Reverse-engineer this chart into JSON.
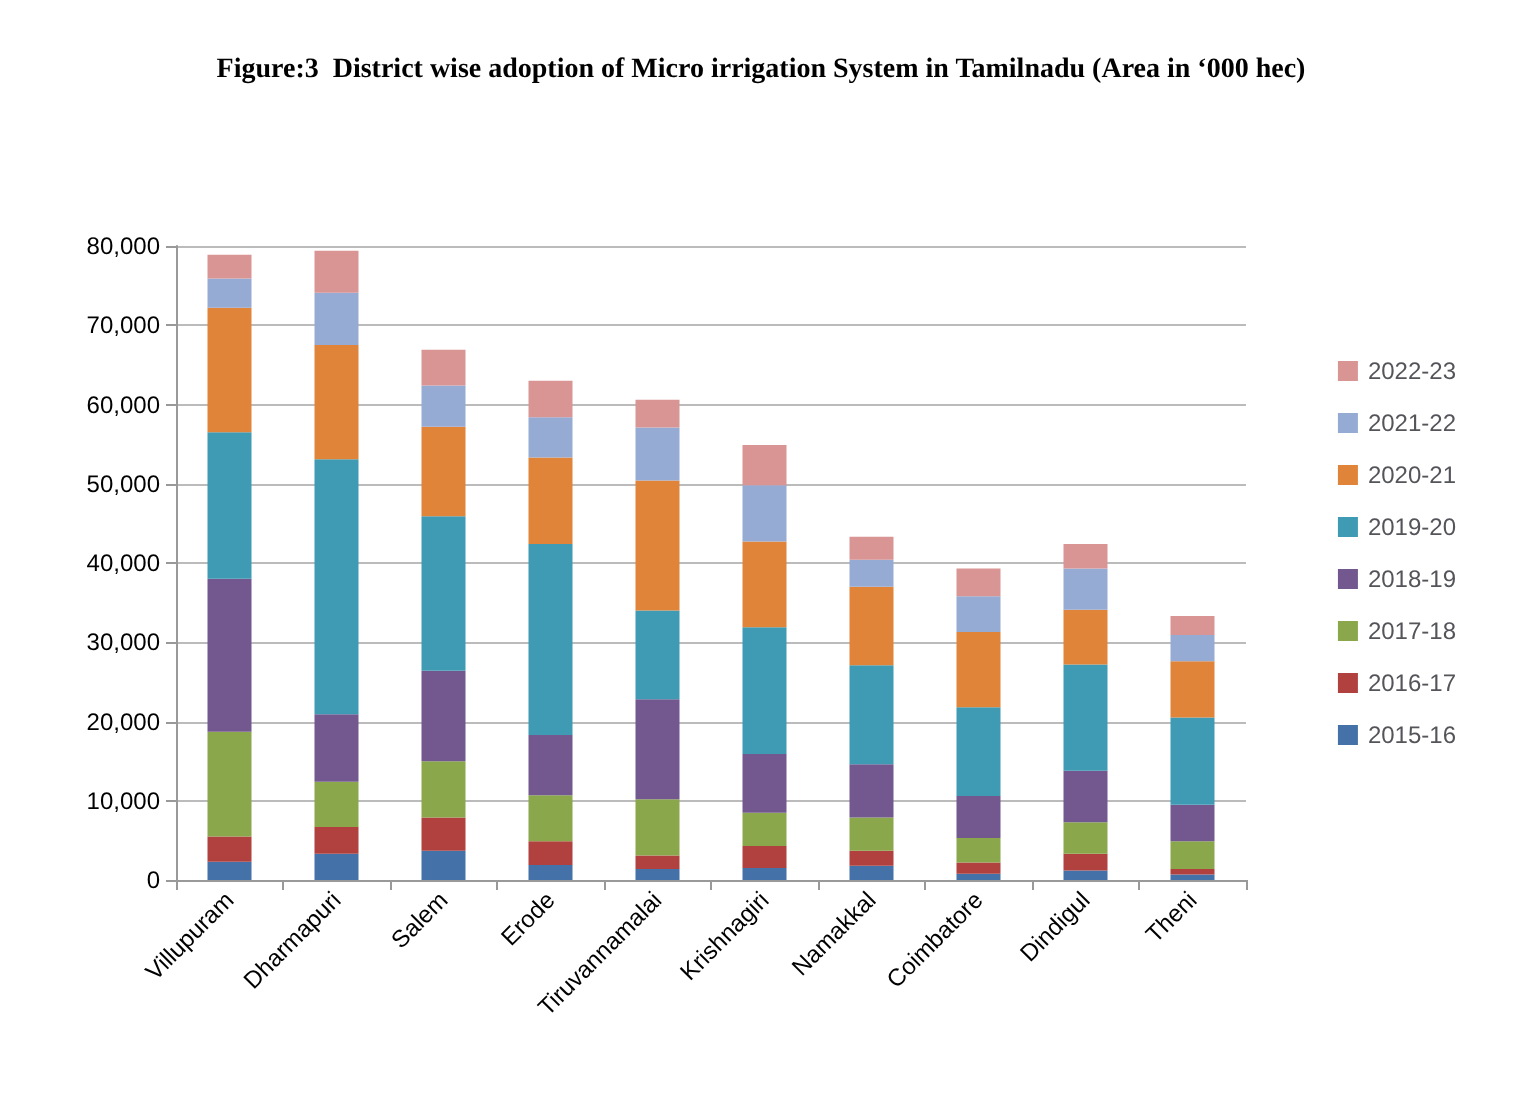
{
  "chart_data": {
    "type": "bar",
    "stacked": true,
    "title": "Figure:3  District wise adoption of Micro irrigation System in Tamilnadu (Area in ‘000 hec)",
    "categories": [
      "Villupuram",
      "Dharmapuri",
      "Salem",
      "Erode",
      "Tiruvannamalai",
      "Krishnagiri",
      "Namakkal",
      "Coimbatore",
      "Dindigul",
      "Theni"
    ],
    "series": [
      {
        "name": "2015-16",
        "color": "#4472a8",
        "values": [
          2300,
          3300,
          3700,
          1900,
          1400,
          1500,
          1800,
          800,
          1200,
          700
        ]
      },
      {
        "name": "2016-17",
        "color": "#b0413e",
        "values": [
          3200,
          3400,
          4200,
          3000,
          1700,
          2800,
          1900,
          1400,
          2100,
          700
        ]
      },
      {
        "name": "2017-18",
        "color": "#8aa84b",
        "values": [
          13200,
          5700,
          7100,
          5800,
          7100,
          4200,
          4200,
          3100,
          4000,
          3500
        ]
      },
      {
        "name": "2018-19",
        "color": "#73588f",
        "values": [
          19300,
          8500,
          11400,
          7600,
          12600,
          7400,
          6700,
          5300,
          6500,
          4600
        ]
      },
      {
        "name": "2019-20",
        "color": "#3f9bb3",
        "values": [
          18500,
          32200,
          19500,
          24100,
          11200,
          16000,
          12500,
          11200,
          13400,
          11000
        ]
      },
      {
        "name": "2020-21",
        "color": "#e0843a",
        "values": [
          15700,
          14400,
          11300,
          10900,
          16400,
          10800,
          9900,
          9500,
          6900,
          7100
        ]
      },
      {
        "name": "2021-22",
        "color": "#96abd3",
        "values": [
          3700,
          6600,
          5200,
          5100,
          6700,
          7100,
          3400,
          4500,
          5200,
          3300
        ]
      },
      {
        "name": "2022-23",
        "color": "#d99594",
        "values": [
          3000,
          5300,
          4500,
          4600,
          3500,
          5100,
          2900,
          3500,
          3100,
          2400
        ]
      }
    ],
    "ylim": [
      0,
      80000
    ],
    "yticks": [
      {
        "value": 0,
        "label": "0"
      },
      {
        "value": 10000,
        "label": "10,000"
      },
      {
        "value": 20000,
        "label": "20,000"
      },
      {
        "value": 30000,
        "label": "30,000"
      },
      {
        "value": 40000,
        "label": "40,000"
      },
      {
        "value": 50000,
        "label": "50,000"
      },
      {
        "value": 60000,
        "label": "60,000"
      },
      {
        "value": 70000,
        "label": "70,000"
      },
      {
        "value": 80000,
        "label": "80,000"
      }
    ],
    "grid": "y",
    "legend": "right"
  }
}
